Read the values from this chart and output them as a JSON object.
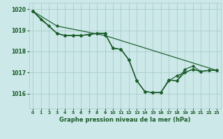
{
  "title": "Graphe pression niveau de la mer (hPa)",
  "bg_color": "#cce8e8",
  "grid_color": "#aacccc",
  "line_color": "#1a5c2a",
  "marker_color": "#1a5c2a",
  "xlim": [
    -0.5,
    23.5
  ],
  "ylim": [
    1015.3,
    1020.3
  ],
  "yticks": [
    1016,
    1017,
    1018,
    1019,
    1020
  ],
  "xticks": [
    0,
    1,
    2,
    3,
    4,
    5,
    6,
    7,
    8,
    9,
    10,
    11,
    12,
    13,
    14,
    15,
    16,
    17,
    18,
    19,
    20,
    21,
    22,
    23
  ],
  "series": [
    {
      "x": [
        0,
        1,
        2,
        3,
        4,
        5,
        6,
        7,
        8,
        9,
        10,
        11,
        12,
        13,
        14,
        15,
        16,
        17,
        18,
        19,
        20,
        21,
        22,
        23
      ],
      "y": [
        1019.9,
        1019.5,
        1019.2,
        1018.85,
        1018.75,
        1018.75,
        1018.75,
        1018.8,
        1018.85,
        1018.85,
        1018.15,
        1018.1,
        1017.6,
        1016.6,
        1016.1,
        1016.05,
        1016.05,
        1016.6,
        1016.85,
        1017.0,
        1017.15,
        1017.05,
        1017.1,
        1017.1
      ]
    },
    {
      "x": [
        0,
        3,
        4,
        5,
        6,
        7,
        8,
        9,
        10,
        11,
        12,
        13,
        14,
        15,
        16,
        17,
        18,
        19,
        20,
        21,
        22,
        23
      ],
      "y": [
        1019.9,
        1018.85,
        1018.75,
        1018.75,
        1018.75,
        1018.8,
        1018.85,
        1018.85,
        1018.15,
        1018.1,
        1017.6,
        1016.6,
        1016.1,
        1016.05,
        1016.05,
        1016.65,
        1016.6,
        1017.15,
        1017.3,
        1017.05,
        1017.1,
        1017.1
      ]
    },
    {
      "x": [
        0,
        3,
        4,
        5,
        6,
        7,
        8,
        9,
        10,
        11,
        12,
        13,
        14,
        15,
        16,
        17,
        18,
        19,
        20,
        21,
        22,
        23
      ],
      "y": [
        1019.9,
        1018.85,
        1018.75,
        1018.75,
        1018.75,
        1018.8,
        1018.85,
        1018.85,
        1018.15,
        1018.1,
        1017.6,
        1016.6,
        1016.1,
        1016.05,
        1016.05,
        1016.65,
        1016.6,
        1017.0,
        1017.15,
        1017.05,
        1017.1,
        1017.1
      ]
    },
    {
      "x": [
        0,
        3,
        9,
        23
      ],
      "y": [
        1019.9,
        1019.2,
        1018.75,
        1017.1
      ]
    }
  ]
}
